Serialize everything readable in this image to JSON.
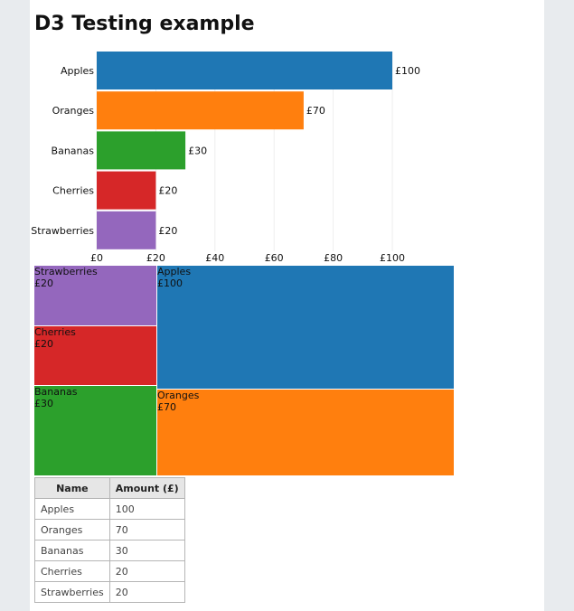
{
  "page": {
    "title": "D3 Testing example"
  },
  "chart_data": [
    {
      "type": "bar",
      "orientation": "horizontal",
      "categories": [
        "Apples",
        "Oranges",
        "Bananas",
        "Cherries",
        "Strawberries"
      ],
      "values": [
        100,
        70,
        30,
        20,
        20
      ],
      "data_labels": [
        "£100",
        "£70",
        "£30",
        "£20",
        "£20"
      ],
      "colors": [
        "#1f77b4",
        "#ff7f0e",
        "#2ca02c",
        "#d62728",
        "#9467bd"
      ],
      "xlim": [
        0,
        100
      ],
      "x_ticks": [
        0,
        20,
        40,
        60,
        80,
        100
      ],
      "x_tick_labels": [
        "£0",
        "£20",
        "£40",
        "£60",
        "£80",
        "£100"
      ],
      "grid": true
    },
    {
      "type": "treemap",
      "items": [
        {
          "name": "Strawberries",
          "value": 20,
          "label": "£20",
          "color": "#9467bd"
        },
        {
          "name": "Cherries",
          "value": 20,
          "label": "£20",
          "color": "#d62728"
        },
        {
          "name": "Bananas",
          "value": 30,
          "label": "£30",
          "color": "#2ca02c"
        },
        {
          "name": "Oranges",
          "value": 70,
          "label": "£70",
          "color": "#ff7f0e"
        },
        {
          "name": "Apples",
          "value": 100,
          "label": "£100",
          "color": "#1f77b4"
        }
      ]
    },
    {
      "type": "table",
      "columns": [
        "Name",
        "Amount (£)"
      ],
      "rows": [
        [
          "Apples",
          "100"
        ],
        [
          "Oranges",
          "70"
        ],
        [
          "Bananas",
          "30"
        ],
        [
          "Cherries",
          "20"
        ],
        [
          "Strawberries",
          "20"
        ]
      ]
    }
  ]
}
